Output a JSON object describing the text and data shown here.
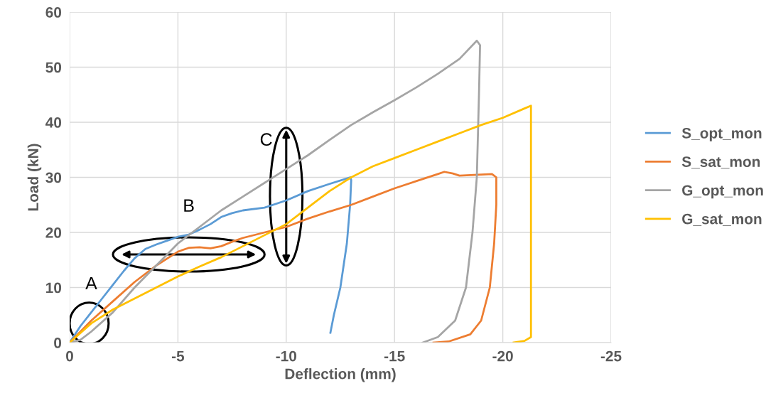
{
  "chart_data": {
    "type": "line",
    "xlabel": "Deflection (mm)",
    "ylabel": "Load (kN)",
    "xlim": [
      0,
      -25
    ],
    "xticks": [
      0,
      -5,
      -10,
      -15,
      -20,
      -25
    ],
    "ylim": [
      0,
      60
    ],
    "yticks": [
      0,
      10,
      20,
      30,
      40,
      50,
      60
    ],
    "grid": true,
    "legend": "right",
    "marker": "none",
    "line_style": "solid",
    "annotations": [
      "A",
      "B",
      "C"
    ],
    "series": [
      {
        "name": "S_opt_mon",
        "color": "#5b9bd5",
        "x": [
          0,
          -0.5,
          -1,
          -1.5,
          -2,
          -2.5,
          -3,
          -3.5,
          -4,
          -4.5,
          -5,
          -5.5,
          -6,
          -6.5,
          -7,
          -7.5,
          -8,
          -9,
          -10,
          -11,
          -12,
          -12.96,
          -13,
          -12.95,
          -12.8,
          -12.5,
          -12.2,
          -12.04
        ],
        "values": [
          0,
          3,
          5.5,
          8,
          10.5,
          13,
          15.3,
          17,
          17.8,
          18.5,
          19.2,
          19.6,
          20.5,
          21.5,
          22.8,
          23.5,
          24,
          24.5,
          25.8,
          27.5,
          28.8,
          30,
          29.5,
          25,
          18,
          10,
          5,
          1.8
        ]
      },
      {
        "name": "S_sat_mon",
        "color": "#ed7d31",
        "x": [
          0,
          -1,
          -2,
          -3,
          -4,
          -5,
          -5.5,
          -6,
          -6.5,
          -7,
          -7.5,
          -8,
          -9,
          -10,
          -11,
          -12,
          -13,
          -14,
          -15,
          -16,
          -17,
          -17.3,
          -17.7,
          -18,
          -18.5,
          -19,
          -19.5,
          -19.7,
          -19.7,
          -19.6,
          -19.4,
          -19.0,
          -18.5,
          -17.5,
          -16.8
        ],
        "values": [
          0,
          4,
          7.5,
          11,
          14,
          16.5,
          17.2,
          17.3,
          17.1,
          17.5,
          18.3,
          19,
          20,
          21,
          22.5,
          23.8,
          25,
          26.5,
          28,
          29.3,
          30.6,
          31,
          30.7,
          30.3,
          30.4,
          30.5,
          30.6,
          30,
          25,
          18,
          10,
          4,
          1.5,
          0.2,
          0
        ]
      },
      {
        "name": "G_opt_mon",
        "color": "#a5a5a5",
        "x": [
          0,
          -0.5,
          -1,
          -2,
          -3,
          -4,
          -5,
          -6,
          -7,
          -8,
          -9,
          -10,
          -11,
          -12,
          -13,
          -14,
          -15,
          -16,
          -17,
          -18,
          -18.8,
          -18.95,
          -18.9,
          -18.8,
          -18.6,
          -18.3,
          -17.8,
          -17,
          -16.3
        ],
        "values": [
          0,
          0.5,
          2,
          5.5,
          10,
          14,
          18,
          21,
          24,
          26.5,
          29,
          31.5,
          34,
          36.8,
          39.5,
          41.8,
          44,
          46.3,
          48.8,
          51.5,
          54.8,
          54,
          45,
          30,
          20,
          10,
          4,
          1,
          0
        ]
      },
      {
        "name": "G_sat_mon",
        "color": "#ffc000",
        "x": [
          0,
          -1,
          -2,
          -3,
          -4,
          -5,
          -6,
          -7,
          -8,
          -9,
          -10,
          -11,
          -12,
          -13,
          -14,
          -15,
          -16,
          -17,
          -18,
          -19,
          -20,
          -21,
          -21.3,
          -21.3,
          -21.3,
          -21,
          -20.5
        ],
        "values": [
          0,
          3.5,
          6,
          8,
          10,
          12,
          13.8,
          15.5,
          17.5,
          19.5,
          21.5,
          24.5,
          27.5,
          30,
          32,
          33.5,
          35,
          36.5,
          38,
          39.5,
          40.8,
          42.5,
          43,
          20,
          1,
          0.3,
          0
        ]
      }
    ]
  }
}
